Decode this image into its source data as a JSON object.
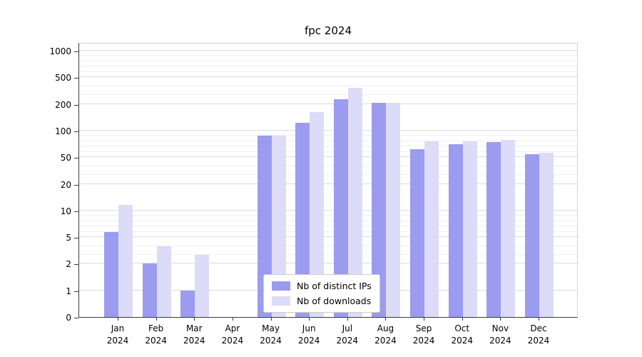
{
  "chart_data": {
    "type": "bar",
    "title": "fpc 2024",
    "categories": [
      "Jan 2024",
      "Feb 2024",
      "Mar 2024",
      "Apr 2024",
      "May 2024",
      "Jun 2024",
      "Jul 2024",
      "Aug 2024",
      "Sep 2024",
      "Oct 2024",
      "Nov 2024",
      "Dec 2024"
    ],
    "series": [
      {
        "name": "Nb of distinct IPs",
        "color": "#9b9bef",
        "values": [
          6,
          2,
          1,
          0,
          90,
          130,
          250,
          210,
          65,
          75,
          78,
          55
        ]
      },
      {
        "name": "Nb of downloads",
        "color": "#dcdcf8",
        "values": [
          12,
          4,
          3,
          0,
          90,
          170,
          380,
          215,
          80,
          80,
          82,
          58
        ]
      }
    ],
    "yscale": "symlog-like",
    "yticks": [
      0,
      1,
      2,
      5,
      10,
      20,
      50,
      100,
      200,
      500,
      1000
    ],
    "yticks_minor": [
      3,
      4,
      6,
      7,
      8,
      9,
      30,
      40,
      60,
      70,
      80,
      90,
      300,
      400,
      600,
      700,
      800,
      900
    ],
    "ylim": [
      0,
      1300
    ],
    "xlabel": "",
    "ylabel": "",
    "grid": true,
    "legend_position": "lower center"
  }
}
